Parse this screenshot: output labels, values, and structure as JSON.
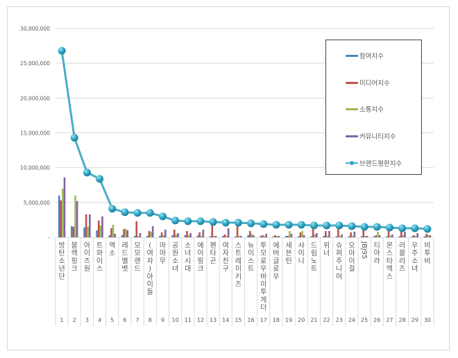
{
  "chart_data": {
    "type": "bar+line",
    "title": "",
    "xlabel": "",
    "ylabel": "",
    "ylim": [
      0,
      30000000
    ],
    "yticks": [
      "-",
      "5,000,000",
      "10,000,000",
      "15,000,000",
      "20,000,000",
      "25,000,000",
      "30,000,000"
    ],
    "ytick_values": [
      0,
      5000000,
      10000000,
      15000000,
      20000000,
      25000000,
      30000000
    ],
    "grid": true,
    "legend_position": "right-top",
    "ranks": [
      "1",
      "2",
      "3",
      "4",
      "5",
      "6",
      "7",
      "8",
      "9",
      "10",
      "11",
      "12",
      "13",
      "14",
      "15",
      "16",
      "17",
      "18",
      "19",
      "20",
      "21",
      "22",
      "23",
      "24",
      "25",
      "26",
      "27",
      "28",
      "29",
      "30"
    ],
    "categories": [
      "방탄소년단",
      "블랙핑크",
      "아이즈원",
      "트와이스",
      "엑소",
      "레드벨벳",
      "모모랜드",
      "(여자)아이들",
      "마마무",
      "공원소녀",
      "소녀시대",
      "에이핑크",
      "펜타곤",
      "여자친구",
      "스트레이키즈",
      "뉴이스트",
      "투모로우바이투게더",
      "에버글로우",
      "세븐틴",
      "샤이니",
      "드림노트",
      "위너",
      "슈퍼주니어",
      "오마이걸",
      "JBJ95",
      "티아라",
      "몬스타엑스",
      "러블리즈",
      "우주소녀",
      "비투비"
    ],
    "series": [
      {
        "name": "참여지수",
        "type": "bar",
        "color": "#4f81bd",
        "values": [
          6000000,
          1600000,
          1400000,
          1000000,
          300000,
          300000,
          200000,
          200000,
          200000,
          300000,
          300000,
          250000,
          150000,
          200000,
          150000,
          300000,
          200000,
          150000,
          200000,
          150000,
          150000,
          200000,
          150000,
          150000,
          150000,
          150000,
          150000,
          150000,
          150000,
          150000
        ]
      },
      {
        "name": "미디어지수",
        "type": "bar",
        "color": "#c0504d",
        "values": [
          5300000,
          1500000,
          3300000,
          2400000,
          1300000,
          1200000,
          2300000,
          900000,
          700000,
          1100000,
          900000,
          700000,
          1800000,
          400000,
          1800000,
          900000,
          300000,
          300000,
          200000,
          700000,
          1500000,
          900000,
          1300000,
          700000,
          1300000,
          300000,
          1200000,
          900000,
          300000,
          500000
        ]
      },
      {
        "name": "소통지수",
        "type": "bar",
        "color": "#9bbb59",
        "values": [
          7000000,
          6000000,
          1500000,
          1700000,
          1800000,
          1200000,
          200000,
          800000,
          300000,
          400000,
          300000,
          200000,
          200000,
          200000,
          200000,
          500000,
          200000,
          200000,
          900000,
          900000,
          400000,
          200000,
          200000,
          200000,
          200000,
          800000,
          200000,
          300000,
          200000,
          300000
        ]
      },
      {
        "name": "커뮤니티지수",
        "type": "bar",
        "color": "#8064a2",
        "values": [
          8600000,
          5200000,
          3300000,
          3000000,
          500000,
          1000000,
          600000,
          1600000,
          1100000,
          600000,
          600000,
          1100000,
          200000,
          1300000,
          200000,
          300000,
          500000,
          200000,
          500000,
          300000,
          600000,
          900000,
          400000,
          800000,
          200000,
          300000,
          400000,
          800000,
          600000,
          300000
        ]
      },
      {
        "name": "브랜드평판지수",
        "type": "line",
        "color": "#4bacc6",
        "values": [
          26800000,
          14300000,
          9300000,
          8400000,
          4100000,
          3600000,
          3500000,
          3500000,
          3000000,
          2400000,
          2300000,
          2300000,
          2200000,
          2100000,
          2100000,
          2000000,
          1900000,
          1800000,
          1800000,
          1800000,
          1700000,
          1700000,
          1700000,
          1600000,
          1500000,
          1500000,
          1400000,
          1300000,
          1300000,
          1200000
        ]
      }
    ]
  },
  "legend": {
    "items": [
      {
        "label": "참여지수",
        "color": "#4f81bd"
      },
      {
        "label": "미디어지수",
        "color": "#c0504d"
      },
      {
        "label": "소통지수",
        "color": "#9bbb59"
      },
      {
        "label": "커뮤니티지수",
        "color": "#8064a2"
      },
      {
        "label": "브랜드평판지수",
        "color": "#4bacc6"
      }
    ]
  }
}
